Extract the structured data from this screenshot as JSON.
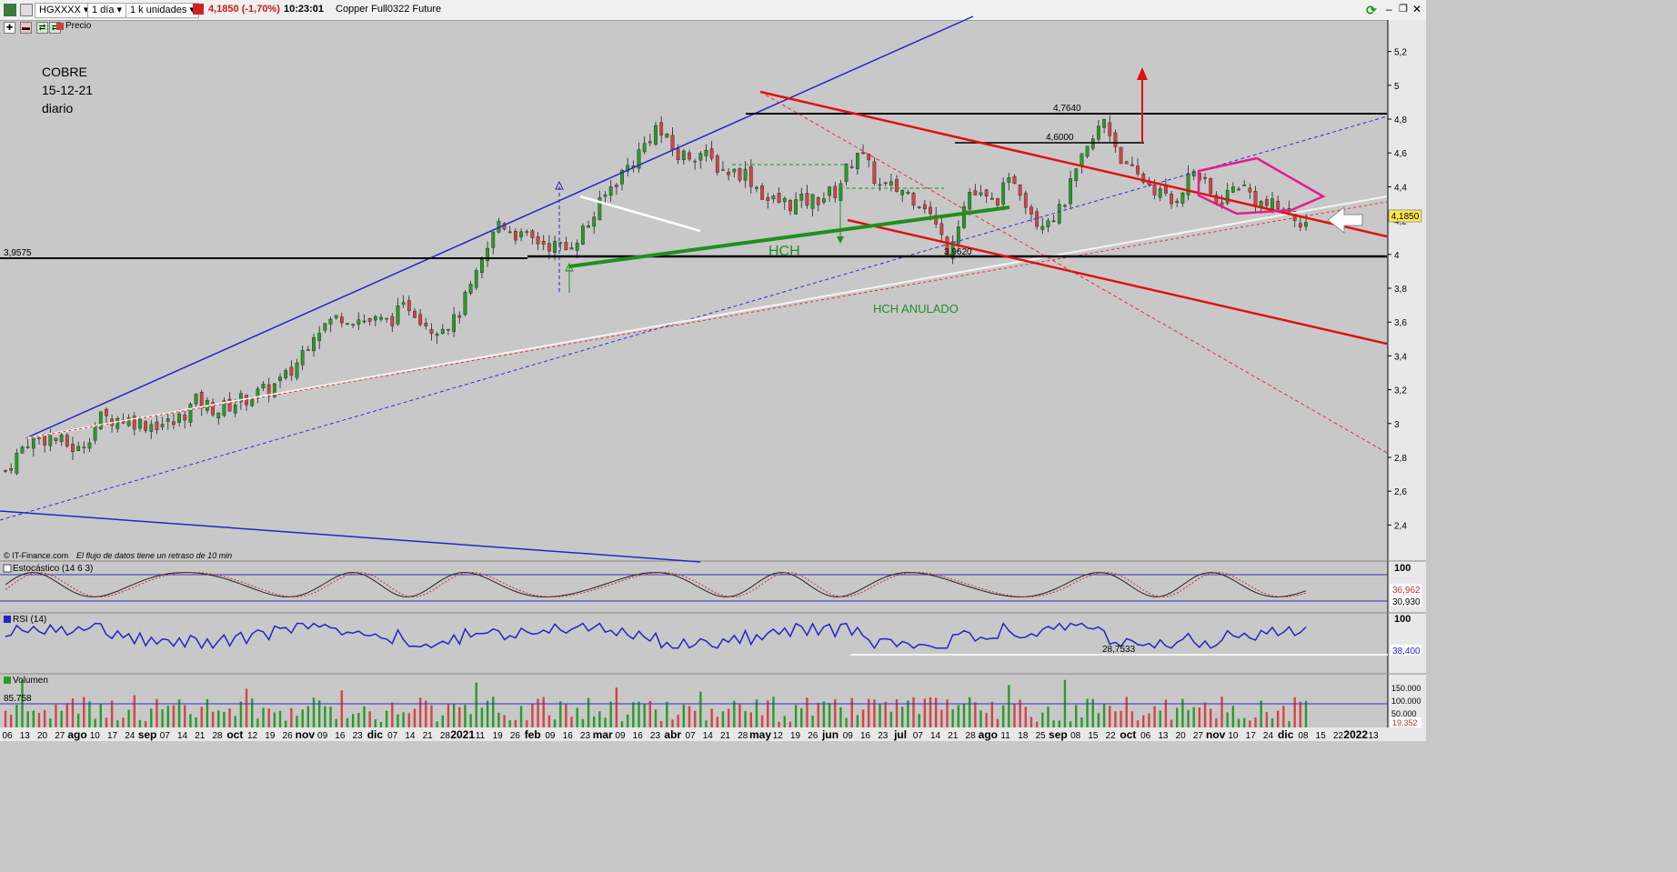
{
  "toolbar": {
    "symbol": "HGXXXX",
    "interval": "1 día",
    "units": "1 k unidades",
    "price_change": "4,1850 (-1,70%)",
    "time": "10:23:01",
    "instrument": "Copper Full0322 Future",
    "price_label": "Precio"
  },
  "annotation": {
    "line1": "COBRE",
    "line2": "15-12-21",
    "line3": "diario",
    "hch": "HCH",
    "hch_anulado": "HCH ANULADO",
    "level_4764": "4,7640",
    "level_46": "4,6000",
    "level_3962": "3,9620",
    "level_39575": "3,9575",
    "current_price": "4,1850",
    "source": "© IT-Finance.com",
    "delay_note": "El flujo de datos tiene un retraso de 10 min"
  },
  "indicators": {
    "stoch_label": "Estocástico (14 6 3)",
    "stoch_val1": "36,962",
    "stoch_val2": "30,930",
    "stoch_top": "100",
    "rsi_label": "RSI (14)",
    "rsi_val": "38,400",
    "rsi_top": "100",
    "rsi_low_label": "28,7533",
    "vol_label": "Volumen",
    "vol_val": "85.758",
    "vol_150": "150.000",
    "vol_100": "100.000",
    "vol_50": "50.000",
    "vol_last": "19.352"
  },
  "colors": {
    "up": "#2a9a2a",
    "down": "#d44444",
    "channel_blue": "#2424c8",
    "red_line": "#e01010",
    "green_line": "#1f8f1f",
    "magenta": "#e0208a",
    "background": "#c8c8c8"
  },
  "chart_data": {
    "type": "candlestick",
    "title": "COBRE",
    "ylim": [
      2.3,
      5.3
    ],
    "y_ticks": [
      "5,2",
      "5",
      "4,8",
      "4,6",
      "4,4",
      "4,2",
      "4",
      "3,8",
      "3,6",
      "3,4",
      "3,2",
      "3",
      "2,8",
      "2,6",
      "2,4"
    ],
    "x_ticks": [
      {
        "label": "06",
        "bold": false
      },
      {
        "label": "13",
        "bold": false
      },
      {
        "label": "20",
        "bold": false
      },
      {
        "label": "27",
        "bold": false
      },
      {
        "label": "ago",
        "bold": true
      },
      {
        "label": "10",
        "bold": false
      },
      {
        "label": "17",
        "bold": false
      },
      {
        "label": "24",
        "bold": false
      },
      {
        "label": "sep",
        "bold": true
      },
      {
        "label": "07",
        "bold": false
      },
      {
        "label": "14",
        "bold": false
      },
      {
        "label": "21",
        "bold": false
      },
      {
        "label": "28",
        "bold": false
      },
      {
        "label": "oct",
        "bold": true
      },
      {
        "label": "12",
        "bold": false
      },
      {
        "label": "19",
        "bold": false
      },
      {
        "label": "26",
        "bold": false
      },
      {
        "label": "nov",
        "bold": true
      },
      {
        "label": "09",
        "bold": false
      },
      {
        "label": "16",
        "bold": false
      },
      {
        "label": "23",
        "bold": false
      },
      {
        "label": "dic",
        "bold": true
      },
      {
        "label": "07",
        "bold": false
      },
      {
        "label": "14",
        "bold": false
      },
      {
        "label": "21",
        "bold": false
      },
      {
        "label": "28",
        "bold": false
      },
      {
        "label": "2021",
        "bold": true
      },
      {
        "label": "11",
        "bold": false
      },
      {
        "label": "19",
        "bold": false
      },
      {
        "label": "26",
        "bold": false
      },
      {
        "label": "feb",
        "bold": true
      },
      {
        "label": "09",
        "bold": false
      },
      {
        "label": "16",
        "bold": false
      },
      {
        "label": "23",
        "bold": false
      },
      {
        "label": "mar",
        "bold": true
      },
      {
        "label": "09",
        "bold": false
      },
      {
        "label": "16",
        "bold": false
      },
      {
        "label": "23",
        "bold": false
      },
      {
        "label": "abr",
        "bold": true
      },
      {
        "label": "07",
        "bold": false
      },
      {
        "label": "14",
        "bold": false
      },
      {
        "label": "21",
        "bold": false
      },
      {
        "label": "28",
        "bold": false
      },
      {
        "label": "may",
        "bold": true
      },
      {
        "label": "12",
        "bold": false
      },
      {
        "label": "19",
        "bold": false
      },
      {
        "label": "26",
        "bold": false
      },
      {
        "label": "jun",
        "bold": true
      },
      {
        "label": "09",
        "bold": false
      },
      {
        "label": "16",
        "bold": false
      },
      {
        "label": "23",
        "bold": false
      },
      {
        "label": "jul",
        "bold": true
      },
      {
        "label": "07",
        "bold": false
      },
      {
        "label": "14",
        "bold": false
      },
      {
        "label": "21",
        "bold": false
      },
      {
        "label": "28",
        "bold": false
      },
      {
        "label": "ago",
        "bold": true
      },
      {
        "label": "11",
        "bold": false
      },
      {
        "label": "18",
        "bold": false
      },
      {
        "label": "25",
        "bold": false
      },
      {
        "label": "sep",
        "bold": true
      },
      {
        "label": "08",
        "bold": false
      },
      {
        "label": "15",
        "bold": false
      },
      {
        "label": "22",
        "bold": false
      },
      {
        "label": "oct",
        "bold": true
      },
      {
        "label": "06",
        "bold": false
      },
      {
        "label": "13",
        "bold": false
      },
      {
        "label": "20",
        "bold": false
      },
      {
        "label": "27",
        "bold": false
      },
      {
        "label": "nov",
        "bold": true
      },
      {
        "label": "10",
        "bold": false
      },
      {
        "label": "17",
        "bold": false
      },
      {
        "label": "24",
        "bold": false
      },
      {
        "label": "dic",
        "bold": true
      },
      {
        "label": "08",
        "bold": false
      },
      {
        "label": "15",
        "bold": false
      },
      {
        "label": "22",
        "bold": false
      },
      {
        "label": "2022",
        "bold": true
      },
      {
        "label": "13",
        "bold": false
      }
    ],
    "close_path": [
      [
        0,
        2.72
      ],
      [
        4,
        2.9
      ],
      [
        8,
        2.92
      ],
      [
        13,
        2.84
      ],
      [
        17,
        3.03
      ],
      [
        21,
        3.03
      ],
      [
        25,
        3.0
      ],
      [
        30,
        3.0
      ],
      [
        34,
        3.13
      ],
      [
        38,
        3.08
      ],
      [
        42,
        3.14
      ],
      [
        47,
        3.2
      ],
      [
        51,
        3.3
      ],
      [
        55,
        3.55
      ],
      [
        60,
        3.64
      ],
      [
        64,
        3.61
      ],
      [
        68,
        3.6
      ],
      [
        72,
        3.7
      ],
      [
        76,
        3.57
      ],
      [
        80,
        3.6
      ],
      [
        84,
        3.86
      ],
      [
        88,
        4.2
      ],
      [
        92,
        4.1
      ],
      [
        96,
        4.07
      ],
      [
        100,
        4.03
      ],
      [
        104,
        4.18
      ],
      [
        108,
        4.4
      ],
      [
        113,
        4.6
      ],
      [
        116,
        4.75
      ],
      [
        120,
        4.58
      ],
      [
        124,
        4.6
      ],
      [
        128,
        4.5
      ],
      [
        132,
        4.48
      ],
      [
        136,
        4.32
      ],
      [
        140,
        4.3
      ],
      [
        144,
        4.32
      ],
      [
        148,
        4.37
      ],
      [
        152,
        4.62
      ],
      [
        156,
        4.4
      ],
      [
        160,
        4.38
      ],
      [
        164,
        4.3
      ],
      [
        168,
        4.03
      ],
      [
        172,
        4.37
      ],
      [
        176,
        4.3
      ],
      [
        180,
        4.45
      ],
      [
        184,
        4.2
      ],
      [
        188,
        4.25
      ],
      [
        192,
        4.55
      ],
      [
        196,
        4.8
      ],
      [
        200,
        4.5
      ],
      [
        204,
        4.42
      ],
      [
        208,
        4.3
      ],
      [
        212,
        4.5
      ],
      [
        216,
        4.3
      ],
      [
        220,
        4.42
      ],
      [
        224,
        4.3
      ],
      [
        228,
        4.26
      ],
      [
        232,
        4.19
      ]
    ],
    "levels": [
      {
        "value": 4.764,
        "label": "4,7640"
      },
      {
        "value": 4.6,
        "label": "4,6000"
      },
      {
        "value": 3.962,
        "label": "3,9620"
      },
      {
        "value": 3.9575,
        "label": "3,9575"
      }
    ],
    "last_price": 4.185,
    "stochastic": {
      "name": "Estocástico (14 6 3)",
      "last": [
        36.962,
        30.93
      ]
    },
    "rsi": {
      "name": "RSI (14)",
      "last": 38.4,
      "low_line": 28.7533
    },
    "volume": {
      "name": "Volumen",
      "last": 19352
    }
  }
}
